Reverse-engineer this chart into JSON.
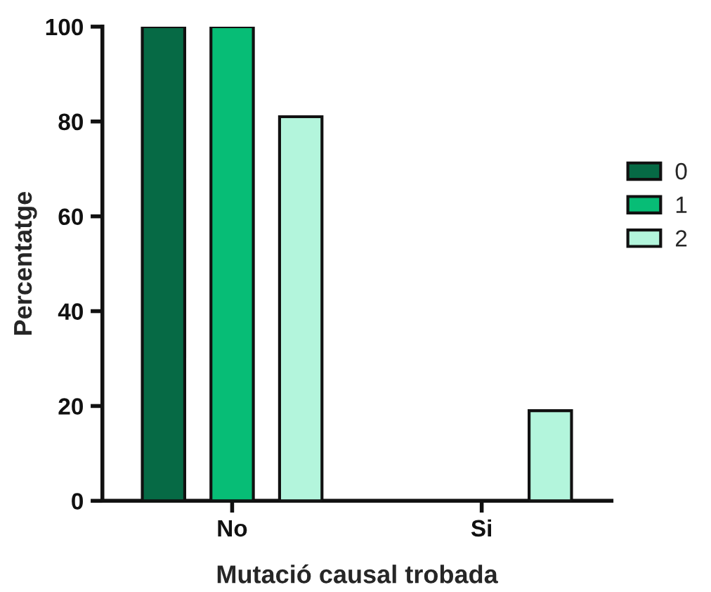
{
  "chart_data": {
    "type": "bar",
    "xlabel": "Mutació causal trobada",
    "ylabel": "Percentatge",
    "categories": [
      "No",
      "Si"
    ],
    "series": [
      {
        "name": "0",
        "color": "#066a45",
        "values": [
          100,
          0
        ]
      },
      {
        "name": "1",
        "color": "#07bd76",
        "values": [
          100,
          0
        ]
      },
      {
        "name": "2",
        "color": "#b3f5dc",
        "values": [
          81,
          19
        ]
      }
    ],
    "ylim": [
      0,
      100
    ],
    "yticks": [
      0,
      20,
      40,
      60,
      80,
      100
    ],
    "grid": false,
    "legend": "right"
  }
}
